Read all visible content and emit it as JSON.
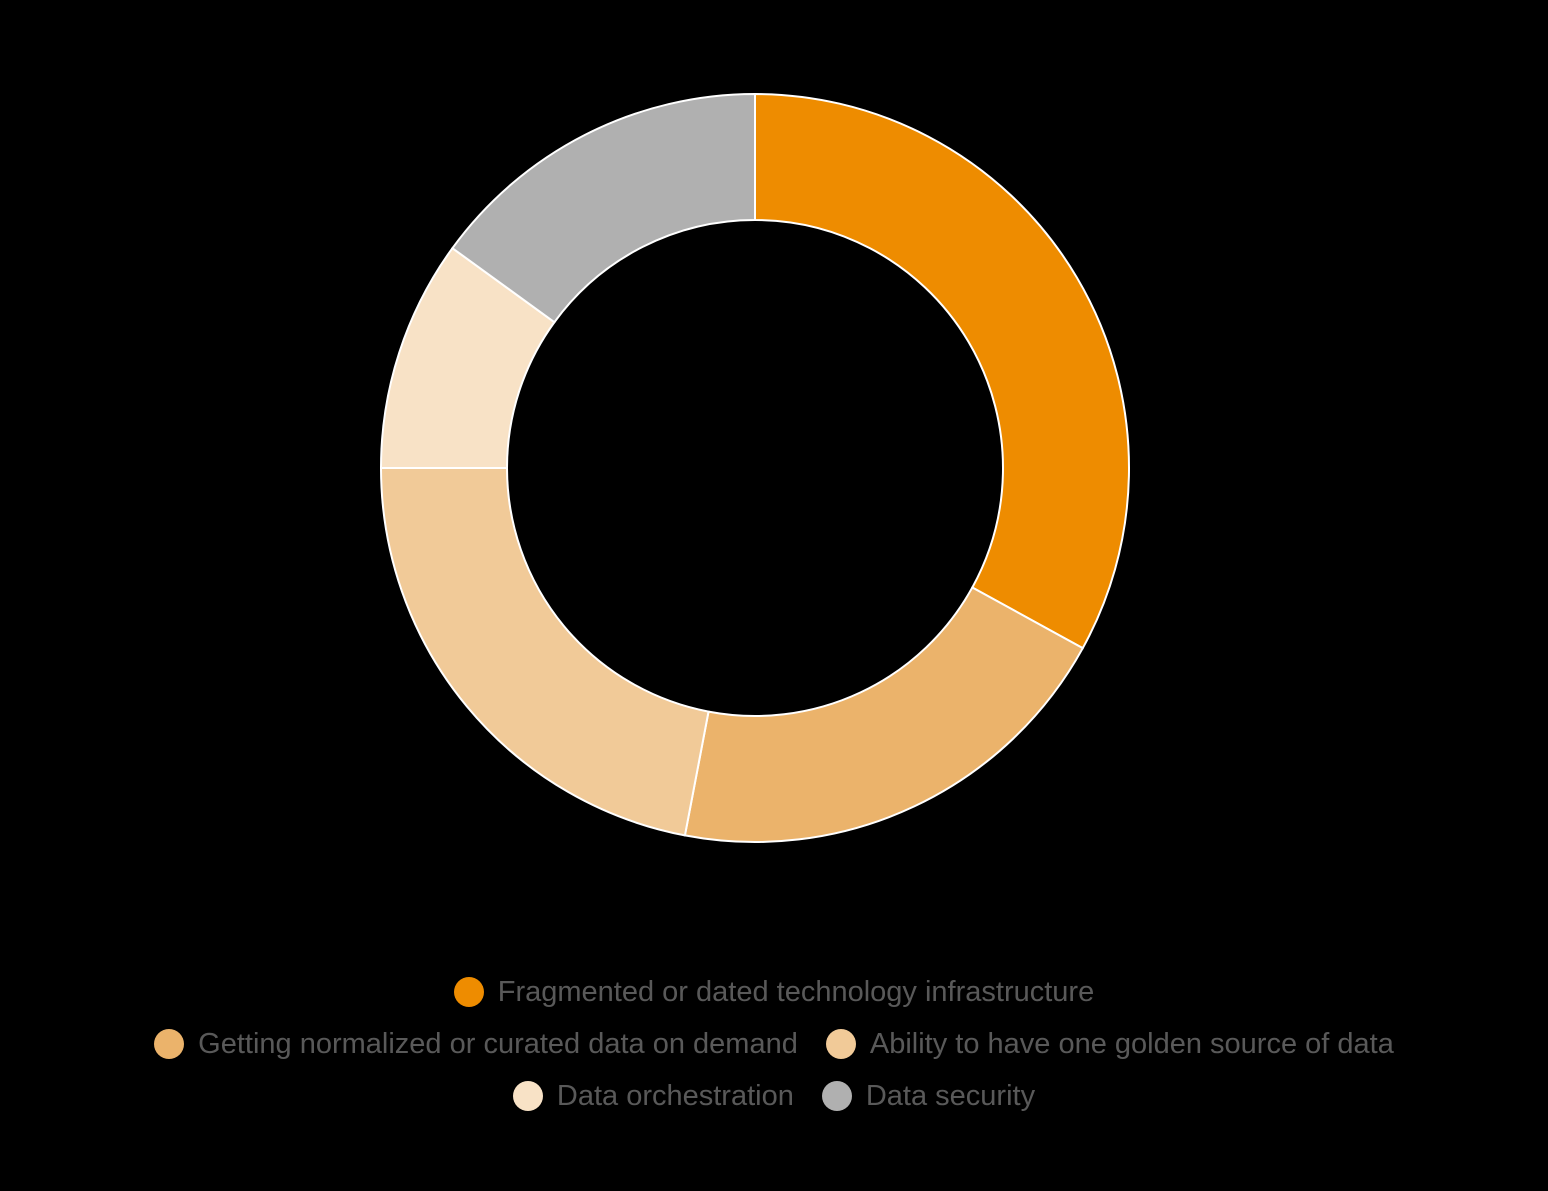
{
  "chart_data": {
    "type": "pie",
    "variant": "donut",
    "categories": [
      "Fragmented or dated technology infrastructure",
      "Getting normalized or curated data on demand",
      "Ability to have one golden source of data",
      "Data orchestration",
      "Data security"
    ],
    "values": [
      33,
      20,
      22,
      10,
      15
    ],
    "unit": "%",
    "colors": [
      "#EE8C00",
      "#EBB36B",
      "#F1CA98",
      "#F8E2C6",
      "#B0B0B0"
    ],
    "start_angle": "12 o'clock",
    "direction": "clockwise",
    "legend_position": "bottom",
    "title": ""
  }
}
